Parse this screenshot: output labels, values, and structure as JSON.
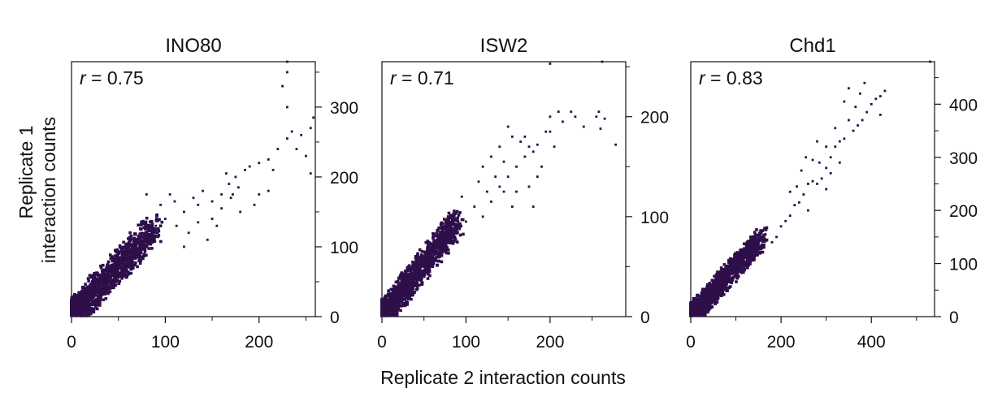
{
  "figure": {
    "ylabel_lines": [
      "Replicate 1",
      "interaction counts"
    ],
    "xlabel": "Replicate 2 interaction counts",
    "point_color": "#2e0f4a"
  },
  "chart_data": [
    {
      "type": "scatter",
      "title": "INO80",
      "annotation": "r = 0.75",
      "r_value": "0.75",
      "xlim": [
        0,
        260
      ],
      "ylim": [
        0,
        365
      ],
      "xticks": [
        0,
        100,
        200
      ],
      "yticks": [
        0,
        100,
        200,
        300
      ],
      "y_axis_side": "right",
      "grid": false,
      "dense_cluster": {
        "x": [
          0,
          90
        ],
        "y": [
          0,
          130
        ],
        "spread": 16
      },
      "points": [
        [
          90,
          130
        ],
        [
          100,
          140
        ],
        [
          112,
          130
        ],
        [
          120,
          150
        ],
        [
          135,
          160
        ],
        [
          150,
          165
        ],
        [
          160,
          175
        ],
        [
          168,
          190
        ],
        [
          172,
          175
        ],
        [
          178,
          185
        ],
        [
          190,
          215
        ],
        [
          200,
          220
        ],
        [
          210,
          225
        ],
        [
          220,
          240
        ],
        [
          230,
          255
        ],
        [
          235,
          265
        ],
        [
          245,
          260
        ],
        [
          255,
          270
        ],
        [
          258,
          285
        ],
        [
          230,
          300
        ],
        [
          225,
          330
        ],
        [
          230,
          350
        ],
        [
          230,
          365
        ],
        [
          240,
          240
        ],
        [
          255,
          205
        ],
        [
          185,
          210
        ],
        [
          175,
          200
        ],
        [
          165,
          205
        ],
        [
          140,
          180
        ],
        [
          130,
          170
        ],
        [
          125,
          120
        ],
        [
          180,
          150
        ],
        [
          150,
          140
        ],
        [
          110,
          165
        ],
        [
          80,
          175
        ],
        [
          95,
          160
        ],
        [
          105,
          175
        ],
        [
          195,
          160
        ],
        [
          200,
          175
        ],
        [
          215,
          210
        ],
        [
          145,
          110
        ],
        [
          120,
          100
        ],
        [
          135,
          135
        ],
        [
          155,
          130
        ],
        [
          170,
          170
        ],
        [
          210,
          180
        ],
        [
          250,
          230
        ],
        [
          160,
          155
        ]
      ]
    },
    {
      "type": "scatter",
      "title": "ISW2",
      "annotation": "r = 0.71",
      "r_value": "0.71",
      "xlim": [
        0,
        290
      ],
      "ylim": [
        0,
        255
      ],
      "xticks": [
        0,
        100,
        200
      ],
      "yticks": [
        0,
        100,
        200
      ],
      "y_axis_side": "right",
      "grid": false,
      "dense_cluster": {
        "x": [
          0,
          90
        ],
        "y": [
          0,
          95
        ],
        "spread": 12
      },
      "points": [
        [
          120,
          100
        ],
        [
          130,
          115
        ],
        [
          140,
          130
        ],
        [
          150,
          140
        ],
        [
          160,
          150
        ],
        [
          170,
          160
        ],
        [
          175,
          170
        ],
        [
          180,
          165
        ],
        [
          185,
          172
        ],
        [
          195,
          185
        ],
        [
          200,
          200
        ],
        [
          210,
          205
        ],
        [
          215,
          195
        ],
        [
          225,
          205
        ],
        [
          230,
          200
        ],
        [
          240,
          190
        ],
        [
          255,
          200
        ],
        [
          265,
          198
        ],
        [
          258,
          205
        ],
        [
          260,
          188
        ],
        [
          278,
          172
        ],
        [
          200,
          253
        ],
        [
          262,
          255
        ],
        [
          155,
          180
        ],
        [
          165,
          175
        ],
        [
          150,
          190
        ],
        [
          135,
          140
        ],
        [
          145,
          125
        ],
        [
          125,
          125
        ],
        [
          110,
          110
        ],
        [
          100,
          95
        ],
        [
          190,
          150
        ],
        [
          175,
          130
        ],
        [
          160,
          125
        ],
        [
          130,
          160
        ],
        [
          140,
          170
        ],
        [
          120,
          150
        ],
        [
          205,
          170
        ],
        [
          185,
          140
        ],
        [
          170,
          180
        ],
        [
          115,
          135
        ],
        [
          155,
          110
        ],
        [
          95,
          120
        ],
        [
          145,
          155
        ],
        [
          180,
          110
        ],
        [
          200,
          185
        ]
      ]
    },
    {
      "type": "scatter",
      "title": "Chd1",
      "annotation": "r = 0.83",
      "r_value": "0.83",
      "xlim": [
        0,
        540
      ],
      "ylim": [
        0,
        480
      ],
      "xticks": [
        0,
        200,
        400
      ],
      "yticks": [
        0,
        100,
        200,
        300,
        400
      ],
      "y_axis_side": "right",
      "grid": false,
      "dense_cluster": {
        "x": [
          0,
          160
        ],
        "y": [
          0,
          150
        ],
        "spread": 18
      },
      "points": [
        [
          190,
          150
        ],
        [
          210,
          180
        ],
        [
          220,
          190
        ],
        [
          230,
          210
        ],
        [
          240,
          215
        ],
        [
          250,
          230
        ],
        [
          260,
          250
        ],
        [
          270,
          255
        ],
        [
          280,
          250
        ],
        [
          290,
          260
        ],
        [
          300,
          280
        ],
        [
          310,
          300
        ],
        [
          320,
          320
        ],
        [
          330,
          330
        ],
        [
          340,
          335
        ],
        [
          360,
          350
        ],
        [
          370,
          360
        ],
        [
          380,
          370
        ],
        [
          390,
          385
        ],
        [
          400,
          400
        ],
        [
          410,
          410
        ],
        [
          420,
          415
        ],
        [
          430,
          425
        ],
        [
          350,
          430
        ],
        [
          375,
          420
        ],
        [
          330,
          290
        ],
        [
          310,
          270
        ],
        [
          285,
          290
        ],
        [
          300,
          320
        ],
        [
          270,
          295
        ],
        [
          245,
          275
        ],
        [
          220,
          235
        ],
        [
          200,
          170
        ],
        [
          180,
          140
        ],
        [
          260,
          200
        ],
        [
          340,
          405
        ],
        [
          365,
          395
        ],
        [
          420,
          380
        ],
        [
          300,
          240
        ],
        [
          235,
          245
        ],
        [
          350,
          370
        ],
        [
          385,
          440
        ],
        [
          530,
          480
        ],
        [
          280,
          330
        ],
        [
          255,
          300
        ],
        [
          320,
          355
        ]
      ]
    }
  ]
}
